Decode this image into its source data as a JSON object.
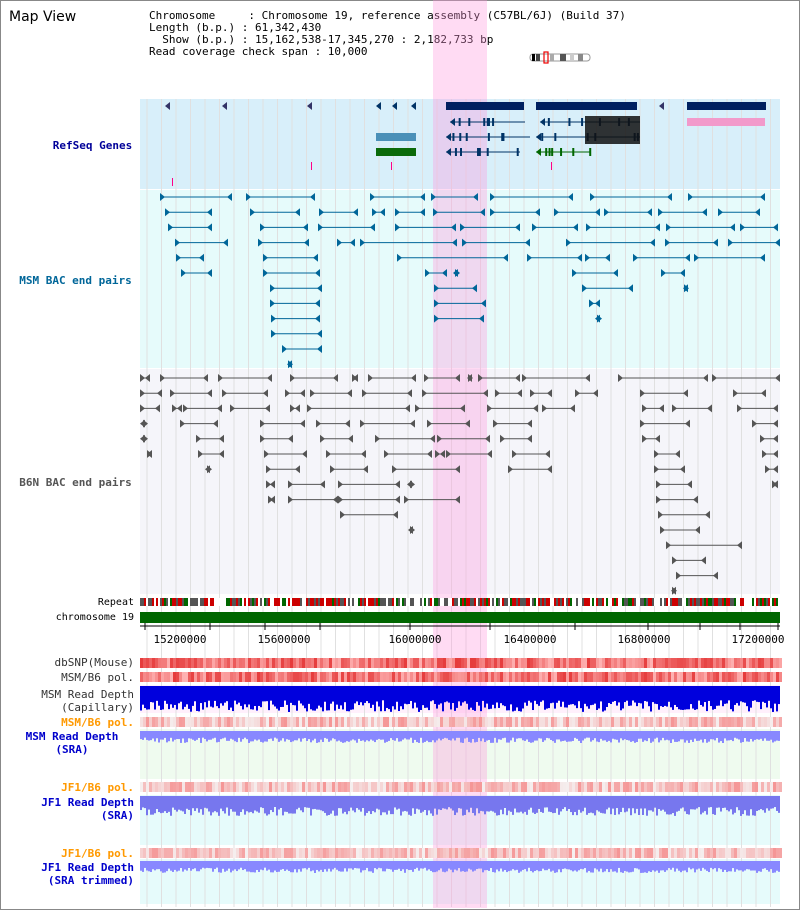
{
  "header": {
    "title": "Map View",
    "chromosome_row": "Chromosome     : Chromosome 19, reference assembly (C57BL/6J) (Build 37)",
    "length_row": "Length (b.p.) : 61,342,430",
    "show_row": "  Show (b.p.) : 15,162,538-17,345,270 : 2,182,733 bp",
    "coverage_row": "Read coverage check span : 10,000"
  },
  "tracks": {
    "refseq": "RefSeq Genes",
    "msm_bac": "MSM BAC end pairs",
    "b6n_bac": "B6N BAC end pairs",
    "repeat": "Repeat",
    "chromosome": "chromosome 19",
    "dbsnp": "dbSNP(Mouse)",
    "msm_pol_1": "MSM/B6 pol.",
    "msm_depth_cap": "MSM Read Depth\n(Capillary)",
    "msm_pol_2": "MSM/B6 pol.",
    "msm_depth_sra": "MSM Read Depth\n(SRA)",
    "jf1_pol_1": "JF1/B6 pol.",
    "jf1_depth_sra": "JF1 Read Depth\n(SRA)",
    "jf1_pol_2": "JF1/B6 pol.",
    "jf1_depth_trim": "JF1 Read Depth\n(SRA trimmed)"
  },
  "axis": {
    "ticks": [
      "15200000",
      "15600000",
      "16000000",
      "16400000",
      "16800000",
      "17200000"
    ]
  },
  "colors": {
    "refseq_label": "#000099",
    "msm_label": "#006699",
    "b6n_label": "#555555",
    "orange_label": "#ff9900",
    "blue_label": "#0000cc",
    "highlight": "#ff99dd",
    "chromosome_bar": "#006600"
  }
}
